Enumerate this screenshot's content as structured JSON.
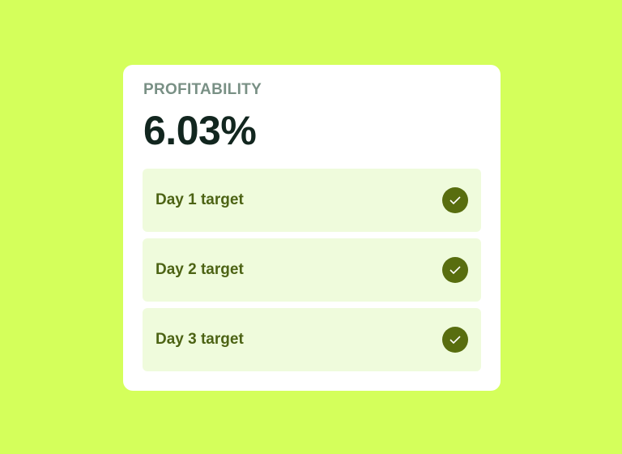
{
  "card": {
    "label": "PROFITABILITY",
    "value": "6.03%",
    "targets": [
      {
        "label": "Day 1 target",
        "icon": "check-circle-icon",
        "completed": true
      },
      {
        "label": "Day 2 target",
        "icon": "check-circle-icon",
        "completed": true
      },
      {
        "label": "Day 3 target",
        "icon": "check-circle-icon",
        "completed": true
      }
    ]
  },
  "colors": {
    "background": "#d4ff5b",
    "row": "#effbdc",
    "check": "#586d0f",
    "text": "#12261f"
  }
}
